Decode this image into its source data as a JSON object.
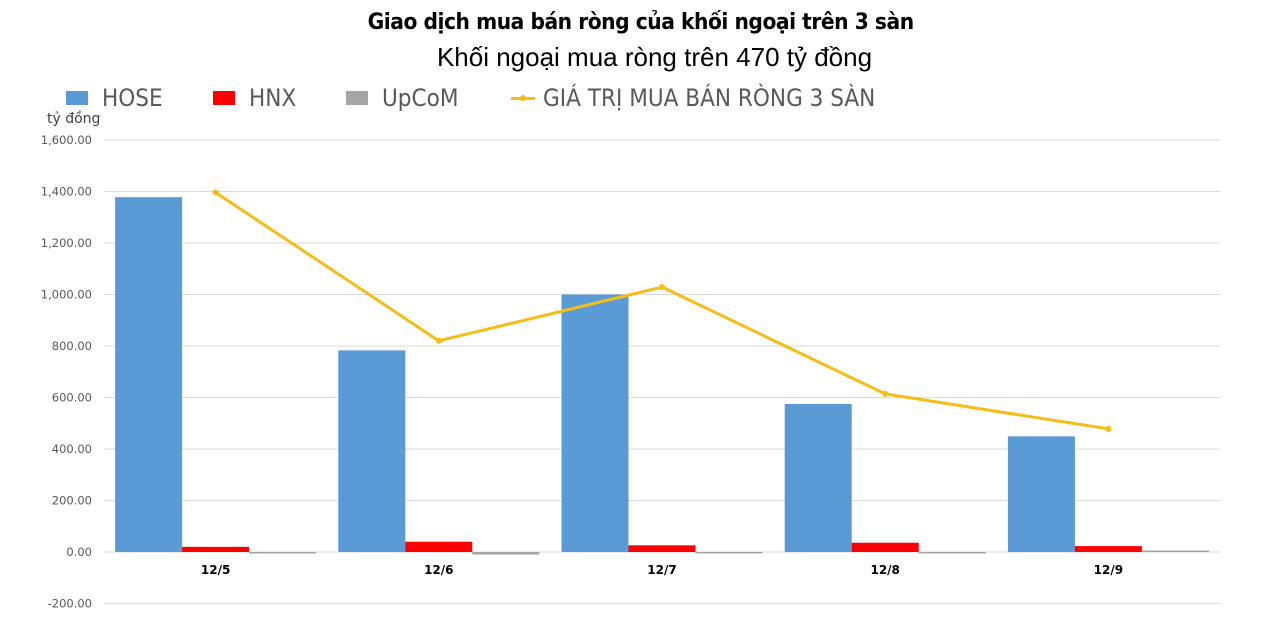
{
  "header": {
    "title": "Giao dịch mua bán ròng của khối ngoại trên 3 sàn",
    "subtitle": "Khối ngoại mua ròng trên 470 tỷ đồng"
  },
  "legend": [
    {
      "name": "HOSE",
      "type": "bar",
      "color": "#5b9bd5"
    },
    {
      "name": "HNX",
      "type": "bar",
      "color": "#ff0000"
    },
    {
      "name": "UpCoM",
      "type": "bar",
      "color": "#a5a5a5"
    },
    {
      "name": "GIÁ TRỊ MUA BÁN RÒNG 3 SÀN",
      "type": "line",
      "color": "#f5bd18"
    }
  ],
  "y_unit": "tỷ đồng",
  "chart_data": {
    "type": "bar",
    "title": "Giao dịch mua bán ròng của khối ngoại trên 3 sàn",
    "subtitle": "Khối ngoại mua ròng trên 470 tỷ đồng",
    "xlabel": "",
    "ylabel": "tỷ đồng",
    "ylim": [
      -200,
      1600
    ],
    "yticks": [
      -200,
      0,
      200,
      400,
      600,
      800,
      1000,
      1200,
      1400,
      1600
    ],
    "ytick_labels": [
      "-200.00",
      "0.00",
      "200.00",
      "400.00",
      "600.00",
      "800.00",
      "1,000.00",
      "1,200.00",
      "1,400.00",
      "1,600.00"
    ],
    "grid": true,
    "legend_position": "top-left",
    "categories": [
      "12/5",
      "12/6",
      "12/7",
      "12/8",
      "12/9"
    ],
    "series": [
      {
        "name": "HOSE",
        "type": "bar",
        "color": "#5b9bd5",
        "values": [
          1378,
          783,
          1000,
          575,
          449
        ]
      },
      {
        "name": "HNX",
        "type": "bar",
        "color": "#ff0000",
        "values": [
          20,
          40,
          26,
          36,
          23
        ]
      },
      {
        "name": "UpCoM",
        "type": "bar",
        "color": "#a5a5a5",
        "values": [
          -6,
          -10,
          -2,
          -2,
          3
        ]
      },
      {
        "name": "GIÁ TRỊ MUA BÁN RÒNG 3 SÀN",
        "type": "line",
        "color": "#f5bd18",
        "values": [
          1396,
          820,
          1029,
          614,
          478
        ]
      }
    ]
  }
}
